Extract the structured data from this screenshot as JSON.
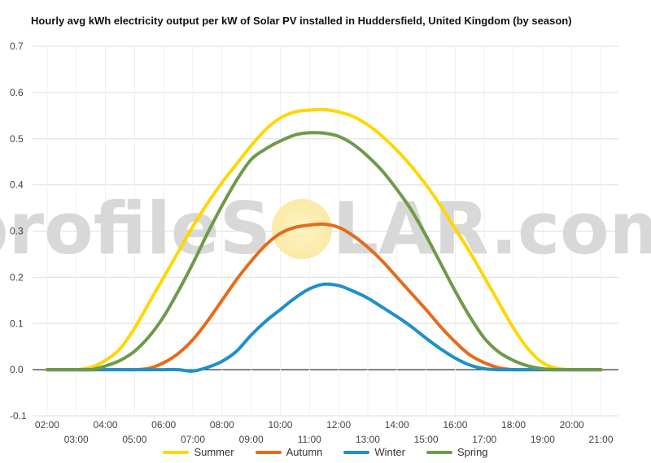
{
  "title": "Hourly avg kWh electricity output per kW of Solar PV installed in Huddersfield, United Kingdom (by season)",
  "watermark": {
    "left": "profileS",
    "right": "LAR.com"
  },
  "chart_data": {
    "type": "line",
    "title": "Hourly avg kWh electricity output per kW of Solar PV installed in Huddersfield, United Kingdom (by season)",
    "xlabel": "",
    "ylabel": "",
    "ylim": [
      -0.1,
      0.7
    ],
    "yticks": [
      -0.1,
      0.0,
      0.1,
      0.2,
      0.3,
      0.4,
      0.5,
      0.6,
      0.7
    ],
    "ytick_labels": [
      "-0.1",
      "0.0",
      "0.1",
      "0.2",
      "0.3",
      "0.4",
      "0.5",
      "0.6",
      "0.7"
    ],
    "xlim": [
      1.5,
      21.6
    ],
    "xticks_top": [
      2,
      4,
      6,
      8,
      10,
      12,
      14,
      16,
      18,
      20
    ],
    "xtick_top_labels": [
      "02:00",
      "04:00",
      "06:00",
      "08:00",
      "10:00",
      "12:00",
      "14:00",
      "16:00",
      "18:00",
      "20:00"
    ],
    "xticks_bottom": [
      3,
      5,
      7,
      9,
      11,
      13,
      15,
      17,
      19,
      21
    ],
    "xtick_bottom_labels": [
      "03:00",
      "05:00",
      "07:00",
      "09:00",
      "11:00",
      "13:00",
      "15:00",
      "17:00",
      "19:00",
      "21:00"
    ],
    "grid": true,
    "legend_position": "bottom",
    "x": [
      2,
      2.5,
      3,
      3.5,
      4,
      4.5,
      5,
      5.5,
      6,
      6.5,
      7,
      7.5,
      8,
      8.5,
      9,
      9.5,
      10,
      10.5,
      11,
      11.5,
      12,
      12.5,
      13,
      13.5,
      14,
      14.5,
      15,
      15.5,
      16,
      16.5,
      17,
      17.5,
      18,
      18.5,
      19,
      19.5,
      20,
      20.5,
      21
    ],
    "series": [
      {
        "name": "Summer",
        "color": "#ffd700",
        "values": [
          0,
          0,
          0,
          0.005,
          0.02,
          0.045,
          0.09,
          0.145,
          0.2,
          0.255,
          0.31,
          0.36,
          0.405,
          0.445,
          0.485,
          0.52,
          0.545,
          0.558,
          0.562,
          0.563,
          0.558,
          0.548,
          0.53,
          0.505,
          0.475,
          0.44,
          0.4,
          0.355,
          0.305,
          0.255,
          0.2,
          0.145,
          0.09,
          0.045,
          0.015,
          0.003,
          0,
          0,
          0
        ]
      },
      {
        "name": "Autumn",
        "color": "#e56b1a",
        "values": [
          0,
          0,
          0,
          0,
          0,
          0,
          0,
          0.003,
          0.015,
          0.035,
          0.065,
          0.105,
          0.15,
          0.195,
          0.235,
          0.27,
          0.295,
          0.308,
          0.313,
          0.315,
          0.308,
          0.29,
          0.265,
          0.235,
          0.2,
          0.165,
          0.13,
          0.093,
          0.06,
          0.032,
          0.015,
          0.004,
          0,
          0,
          0,
          0,
          0,
          0,
          0
        ]
      },
      {
        "name": "Winter",
        "color": "#1f90c8",
        "values": [
          0,
          0,
          0,
          0,
          0,
          0,
          0,
          0,
          0,
          0,
          -0.003,
          0.005,
          0.018,
          0.04,
          0.075,
          0.105,
          0.13,
          0.155,
          0.175,
          0.185,
          0.182,
          0.17,
          0.155,
          0.135,
          0.115,
          0.093,
          0.068,
          0.045,
          0.025,
          0.01,
          0.002,
          0,
          0,
          0,
          0,
          0,
          0,
          0,
          0
        ]
      },
      {
        "name": "Spring",
        "color": "#6e9a4a",
        "values": [
          0,
          0,
          0,
          0,
          0.008,
          0.02,
          0.04,
          0.072,
          0.115,
          0.17,
          0.23,
          0.295,
          0.355,
          0.41,
          0.455,
          0.478,
          0.495,
          0.508,
          0.513,
          0.512,
          0.505,
          0.488,
          0.462,
          0.43,
          0.39,
          0.345,
          0.29,
          0.23,
          0.17,
          0.115,
          0.068,
          0.038,
          0.02,
          0.008,
          0.002,
          0,
          0,
          0,
          0
        ]
      }
    ]
  }
}
